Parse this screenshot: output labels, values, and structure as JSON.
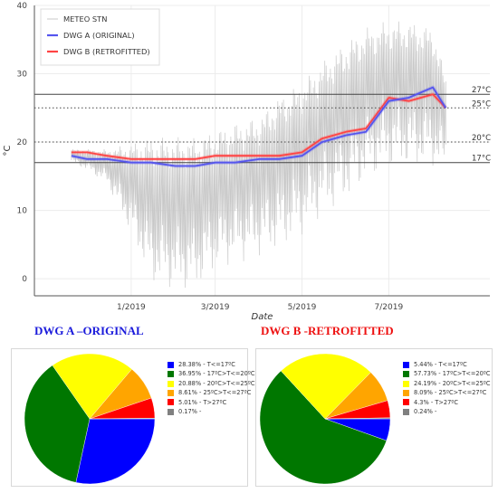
{
  "chart_data": [
    {
      "type": "line",
      "xlabel": "Date",
      "ylabel": "°C",
      "ylim": [
        -2.5,
        40
      ],
      "x_ticks": [
        "1/2019",
        "3/2019",
        "5/2019",
        "7/2019"
      ],
      "y_ticks": [
        0,
        10,
        20,
        30,
        40
      ],
      "grid": true,
      "legend": "top-left",
      "series": [
        {
          "name": "METEO STN",
          "color": "#c8c8c8",
          "x": [
            "2018-11-20",
            "2018-12-01",
            "2018-12-15",
            "2019-01-01",
            "2019-01-15",
            "2019-02-01",
            "2019-02-15",
            "2019-03-01",
            "2019-03-15",
            "2019-04-01",
            "2019-04-15",
            "2019-05-01",
            "2019-05-15",
            "2019-06-01",
            "2019-06-15",
            "2019-07-01",
            "2019-07-15",
            "2019-08-01",
            "2019-08-10"
          ],
          "y_min": [
            17,
            16,
            14,
            7,
            0,
            -1,
            -1,
            2,
            3,
            4,
            5,
            7,
            10,
            12,
            15,
            17,
            17,
            17,
            16
          ],
          "y_max": [
            19,
            19,
            19,
            20,
            21,
            21,
            21,
            22,
            23,
            24,
            27,
            29,
            32,
            35,
            37,
            38,
            38,
            37,
            30
          ]
        },
        {
          "name": "DWG A (ORIGINAL)",
          "color": "#5555ee",
          "x": [
            "2018-11-20",
            "2018-12-01",
            "2018-12-15",
            "2019-01-01",
            "2019-01-15",
            "2019-02-01",
            "2019-02-15",
            "2019-03-01",
            "2019-03-15",
            "2019-04-01",
            "2019-04-15",
            "2019-05-01",
            "2019-05-15",
            "2019-06-01",
            "2019-06-15",
            "2019-07-01",
            "2019-07-15",
            "2019-08-01",
            "2019-08-10"
          ],
          "y": [
            18,
            17.5,
            17.5,
            17,
            17,
            16.5,
            16.5,
            17,
            17,
            17.5,
            17.5,
            18,
            20,
            21,
            21.5,
            26,
            26.5,
            28,
            25
          ]
        },
        {
          "name": "DWG B (RETROFITTED)",
          "color": "#ff4444",
          "x": [
            "2018-11-20",
            "2018-12-01",
            "2018-12-15",
            "2019-01-01",
            "2019-01-15",
            "2019-02-01",
            "2019-02-15",
            "2019-03-01",
            "2019-03-15",
            "2019-04-01",
            "2019-04-15",
            "2019-05-01",
            "2019-05-15",
            "2019-06-01",
            "2019-06-15",
            "2019-07-01",
            "2019-07-15",
            "2019-08-01",
            "2019-08-10"
          ],
          "y": [
            18.5,
            18.5,
            18,
            17.5,
            17.5,
            17.5,
            17.5,
            18,
            18,
            18,
            18,
            18.5,
            20.5,
            21.5,
            22,
            26.5,
            26,
            27,
            25
          ]
        }
      ],
      "reference_lines": [
        {
          "value": 27,
          "label": "27°C",
          "style": "solid"
        },
        {
          "value": 25,
          "label": "25°C",
          "style": "dotted"
        },
        {
          "value": 20,
          "label": "20°C",
          "style": "dotted"
        },
        {
          "value": 17,
          "label": "17°C",
          "style": "solid"
        }
      ]
    },
    {
      "type": "pie",
      "title": "DWG A –ORIGINAL",
      "title_color": "#1a1adb",
      "slices": [
        {
          "label": "28.38% - T<=17ºC",
          "value": 28.38,
          "color": "#0000ff"
        },
        {
          "label": "36.95% - 17ºC>T<=20ºC",
          "value": 36.95,
          "color": "#007700"
        },
        {
          "label": "20.88% - 20ºC>T<=25ºC",
          "value": 20.88,
          "color": "#ffff00"
        },
        {
          "label": "8.61% - 25ºC>T<=27ºC",
          "value": 8.61,
          "color": "#ffa500"
        },
        {
          "label": "5.01% - T>27ºC",
          "value": 5.01,
          "color": "#ff0000"
        },
        {
          "label": "0.17% -",
          "value": 0.17,
          "color": "#808080"
        }
      ]
    },
    {
      "type": "pie",
      "title": "DWG B -RETROFITTED",
      "title_color": "#ee1111",
      "slices": [
        {
          "label": "5.44% - T<=17ºC",
          "value": 5.44,
          "color": "#0000ff"
        },
        {
          "label": "57.73% - 17ºC>T<=20ºC",
          "value": 57.73,
          "color": "#007700"
        },
        {
          "label": "24.19% - 20ºC>T<=25ºC",
          "value": 24.19,
          "color": "#ffff00"
        },
        {
          "label": "8.09% - 25ºC>T<=27ºC",
          "value": 8.09,
          "color": "#ffa500"
        },
        {
          "label": "4.3% - T>27ºC",
          "value": 4.3,
          "color": "#ff0000"
        },
        {
          "label": "0.24% -",
          "value": 0.24,
          "color": "#808080"
        }
      ]
    }
  ]
}
